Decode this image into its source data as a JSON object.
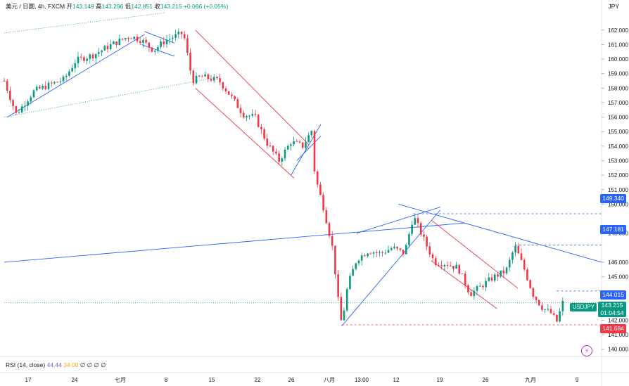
{
  "header": {
    "symbol_text": "美元 / 日圆, 4h, FXCM",
    "open_label": "开",
    "open": "143.149",
    "high_label": "高",
    "high": "143.296",
    "low_label": "低",
    "low": "142.851",
    "close_label": "收",
    "close": "143.215",
    "change": "+0.066 (+0.05%)",
    "currency": "JPY"
  },
  "rsi": {
    "label": "RSI (14, close)",
    "value": "44.44",
    "value2": "34.00",
    "placeholders": "∅ ∅ ∅ ∅"
  },
  "price_tags": {
    "p149": "149.340",
    "p147": "147.181",
    "p144": "144.015",
    "p141": "141.684",
    "last": "143.215",
    "countdown": "01:04:54",
    "symbol": "USDJPY"
  },
  "colors": {
    "up": "#089981",
    "down": "#f23645",
    "trend_blue": "#2962ff",
    "channel_red": "#f23645",
    "dotted_green": "#089981"
  },
  "chart_data": {
    "type": "candlestick",
    "y_range": [
      139.6,
      163.2
    ],
    "y_ticks": [
      "162.000",
      "161.000",
      "160.000",
      "159.000",
      "158.000",
      "157.000",
      "156.000",
      "155.000",
      "154.000",
      "153.000",
      "152.000",
      "151.000",
      "150.000",
      "148.000",
      "146.000",
      "145.000",
      "142.000",
      "141.000",
      "140.000"
    ],
    "x_ticks": [
      "17",
      "24",
      "七月",
      "8",
      "15",
      "22",
      "26",
      "八月",
      "13:00",
      "12",
      "19",
      "26",
      "九月",
      "9"
    ],
    "close_path": [
      {
        "x": 0.0,
        "y": 158.5
      },
      {
        "x": 0.02,
        "y": 156.2
      },
      {
        "x": 0.05,
        "y": 157.8
      },
      {
        "x": 0.08,
        "y": 158.3
      },
      {
        "x": 0.1,
        "y": 158.6
      },
      {
        "x": 0.12,
        "y": 159.9
      },
      {
        "x": 0.15,
        "y": 160.3
      },
      {
        "x": 0.18,
        "y": 161.0
      },
      {
        "x": 0.21,
        "y": 161.6
      },
      {
        "x": 0.23,
        "y": 161.3
      },
      {
        "x": 0.25,
        "y": 160.6
      },
      {
        "x": 0.27,
        "y": 161.3
      },
      {
        "x": 0.3,
        "y": 161.8
      },
      {
        "x": 0.315,
        "y": 158.5
      },
      {
        "x": 0.33,
        "y": 158.8
      },
      {
        "x": 0.36,
        "y": 158.5
      },
      {
        "x": 0.38,
        "y": 157.4
      },
      {
        "x": 0.4,
        "y": 156.2
      },
      {
        "x": 0.42,
        "y": 156.0
      },
      {
        "x": 0.44,
        "y": 154.2
      },
      {
        "x": 0.46,
        "y": 153.0
      },
      {
        "x": 0.48,
        "y": 154.3
      },
      {
        "x": 0.5,
        "y": 154.0
      },
      {
        "x": 0.515,
        "y": 155.1
      },
      {
        "x": 0.52,
        "y": 152.0
      },
      {
        "x": 0.535,
        "y": 149.7
      },
      {
        "x": 0.55,
        "y": 146.9
      },
      {
        "x": 0.56,
        "y": 143.0
      },
      {
        "x": 0.565,
        "y": 141.7
      },
      {
        "x": 0.575,
        "y": 144.4
      },
      {
        "x": 0.59,
        "y": 146.2
      },
      {
        "x": 0.61,
        "y": 146.8
      },
      {
        "x": 0.63,
        "y": 146.6
      },
      {
        "x": 0.65,
        "y": 147.0
      },
      {
        "x": 0.67,
        "y": 146.6
      },
      {
        "x": 0.685,
        "y": 149.2
      },
      {
        "x": 0.7,
        "y": 147.8
      },
      {
        "x": 0.72,
        "y": 146.0
      },
      {
        "x": 0.74,
        "y": 145.9
      },
      {
        "x": 0.76,
        "y": 145.6
      },
      {
        "x": 0.78,
        "y": 143.8
      },
      {
        "x": 0.8,
        "y": 144.4
      },
      {
        "x": 0.82,
        "y": 145.0
      },
      {
        "x": 0.84,
        "y": 145.4
      },
      {
        "x": 0.855,
        "y": 147.1
      },
      {
        "x": 0.87,
        "y": 145.6
      },
      {
        "x": 0.885,
        "y": 143.8
      },
      {
        "x": 0.9,
        "y": 142.9
      },
      {
        "x": 0.915,
        "y": 142.5
      },
      {
        "x": 0.925,
        "y": 141.9
      },
      {
        "x": 0.935,
        "y": 143.2
      }
    ],
    "horizontal_levels": [
      149.34,
      147.181,
      144.015,
      141.684,
      143.215
    ]
  }
}
